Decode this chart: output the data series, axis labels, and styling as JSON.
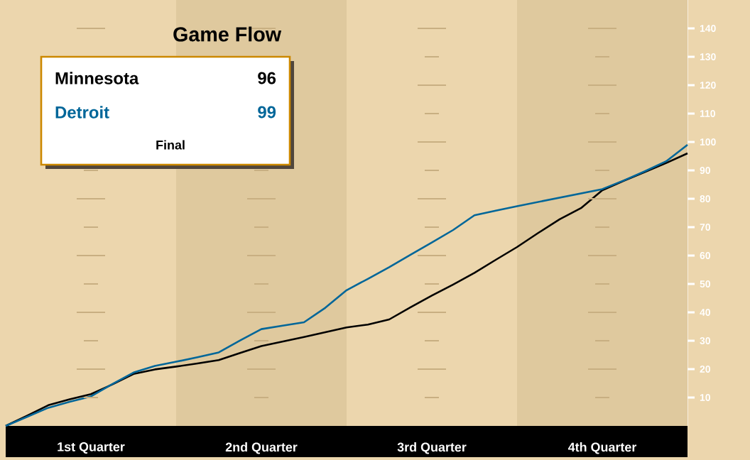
{
  "chart_data": {
    "type": "line",
    "title": "Game Flow",
    "categories": [
      null,
      null,
      null,
      null,
      "1st Quarter",
      null,
      null,
      null,
      null,
      null,
      null,
      null,
      "2nd Quarter",
      null,
      null,
      null,
      null,
      null,
      null,
      null,
      "3rd Quarter",
      null,
      null,
      null,
      null,
      null,
      null,
      null,
      "4th Quarter",
      null,
      null,
      null,
      null
    ],
    "ylim": [
      0,
      150
    ],
    "yticks": [
      10,
      20,
      30,
      40,
      50,
      60,
      70,
      80,
      90,
      100,
      110,
      120,
      130,
      140
    ],
    "legend": "top left",
    "series": [
      {
        "name": "Minnesota",
        "color": "#000000",
        "values": [
          0,
          3.6,
          7.3,
          9.4,
          11.2,
          14.6,
          18.3,
          19.9,
          20.9,
          22,
          23.2,
          25.7,
          28.1,
          29.7,
          31.3,
          33,
          34.7,
          35.7,
          37.5,
          41.8,
          45.9,
          49.8,
          53.9,
          58.5,
          63,
          68,
          72.8,
          76.7,
          83,
          86.3,
          89.4,
          92.6,
          96
        ]
      },
      {
        "name": "Detroit",
        "color": "#006699",
        "values": [
          0,
          3.2,
          6.4,
          8.5,
          10.4,
          14.7,
          18.8,
          21.1,
          22.6,
          24.2,
          25.9,
          30.1,
          34.1,
          35.3,
          36.5,
          41.6,
          47.8,
          51.8,
          55.9,
          60.3,
          64.6,
          69,
          74.2,
          75.8,
          77.4,
          78.9,
          80.4,
          81.9,
          83.4,
          86.4,
          89.7,
          93.2,
          99
        ]
      }
    ],
    "annotations": [
      "96",
      "99",
      "Final"
    ]
  }
}
